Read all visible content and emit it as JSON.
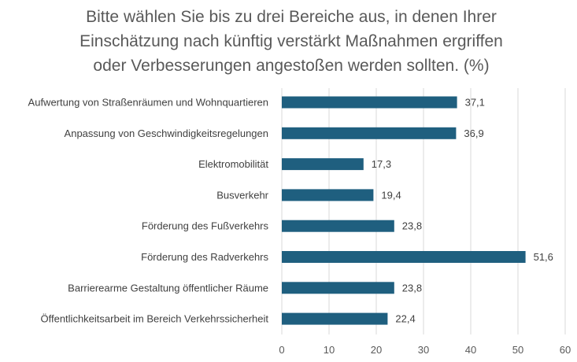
{
  "chart_data": {
    "type": "bar",
    "orientation": "horizontal",
    "title_lines": [
      "Bitte wählen Sie bis zu drei Bereiche aus, in denen Ihrer",
      "Einschätzung nach künftig verstärkt Maßnahmen ergriffen",
      "oder Verbesserungen angestoßen werden sollten.  (%)"
    ],
    "categories": [
      "Aufwertung von Straßenräumen und Wohnquartieren",
      "Anpassung von Geschwindigkeitsregelungen",
      "Elektromobilität",
      "Busverkehr",
      "Förderung des Fußverkehrs",
      "Förderung des Radverkehrs",
      "Barrierearme Gestaltung öffentlicher Räume",
      "Öffentlichkeitsarbeit im Bereich Verkehrssicherheit"
    ],
    "values": [
      37.1,
      36.9,
      17.3,
      19.4,
      23.8,
      51.6,
      23.8,
      22.4
    ],
    "value_labels": [
      "37,1",
      "36,9",
      "17,3",
      "19,4",
      "23,8",
      "51,6",
      "23,8",
      "22,4"
    ],
    "xlim": [
      0,
      60
    ],
    "xticks": [
      0,
      10,
      20,
      30,
      40,
      50,
      60
    ],
    "xlabel": "",
    "ylabel": "",
    "grid": "vertical",
    "bar_color": "#1f5f7f",
    "grid_color": "#d9d9d9"
  }
}
